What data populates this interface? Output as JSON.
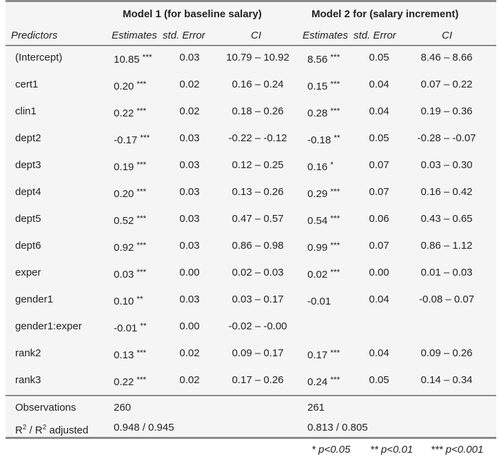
{
  "header": {
    "model1_title": "Model 1 (for baseline salary)",
    "model2_title": "Model 2 for (salary increment)"
  },
  "subheader": {
    "predictors": "Predictors",
    "estimates1": "Estimates",
    "std_error1": "std. Error",
    "ci1": "CI",
    "estimates2": "Estimates",
    "std_error2": "std. Error",
    "ci2": "CI"
  },
  "rows": [
    {
      "name": "(Intercept)",
      "m1_est": "10.85",
      "m1_stars": "***",
      "m1_se": "0.03",
      "m1_ci": "10.79 – 10.92",
      "m2_est": "8.56",
      "m2_stars": "***",
      "m2_se": "0.05",
      "m2_ci": "8.46 – 8.66"
    },
    {
      "name": "cert1",
      "m1_est": "0.20",
      "m1_stars": "***",
      "m1_se": "0.02",
      "m1_ci": "0.16 – 0.24",
      "m2_est": "0.15",
      "m2_stars": "***",
      "m2_se": "0.04",
      "m2_ci": "0.07 – 0.22"
    },
    {
      "name": "clin1",
      "m1_est": "0.22",
      "m1_stars": "***",
      "m1_se": "0.02",
      "m1_ci": "0.18 – 0.26",
      "m2_est": "0.28",
      "m2_stars": "***",
      "m2_se": "0.04",
      "m2_ci": "0.19 – 0.36"
    },
    {
      "name": "dept2",
      "m1_est": "-0.17",
      "m1_stars": "***",
      "m1_se": "0.03",
      "m1_ci": "-0.22 – -0.12",
      "m2_est": "-0.18",
      "m2_stars": "**",
      "m2_se": "0.05",
      "m2_ci": "-0.28 – -0.07"
    },
    {
      "name": "dept3",
      "m1_est": "0.19",
      "m1_stars": "***",
      "m1_se": "0.03",
      "m1_ci": "0.12 – 0.25",
      "m2_est": "0.16",
      "m2_stars": "*",
      "m2_se": "0.07",
      "m2_ci": "0.03 – 0.30"
    },
    {
      "name": "dept4",
      "m1_est": "0.20",
      "m1_stars": "***",
      "m1_se": "0.03",
      "m1_ci": "0.13 – 0.26",
      "m2_est": "0.29",
      "m2_stars": "***",
      "m2_se": "0.07",
      "m2_ci": "0.16 – 0.42"
    },
    {
      "name": "dept5",
      "m1_est": "0.52",
      "m1_stars": "***",
      "m1_se": "0.03",
      "m1_ci": "0.47 – 0.57",
      "m2_est": "0.54",
      "m2_stars": "***",
      "m2_se": "0.06",
      "m2_ci": "0.43 – 0.65"
    },
    {
      "name": "dept6",
      "m1_est": "0.92",
      "m1_stars": "***",
      "m1_se": "0.03",
      "m1_ci": "0.86 – 0.98",
      "m2_est": "0.99",
      "m2_stars": "***",
      "m2_se": "0.07",
      "m2_ci": "0.86 – 1.12"
    },
    {
      "name": "exper",
      "m1_est": "0.03",
      "m1_stars": "***",
      "m1_se": "0.00",
      "m1_ci": "0.02 – 0.03",
      "m2_est": "0.02",
      "m2_stars": "***",
      "m2_se": "0.00",
      "m2_ci": "0.01 – 0.03"
    },
    {
      "name": "gender1",
      "m1_est": "0.10",
      "m1_stars": "**",
      "m1_se": "0.03",
      "m1_ci": "0.03 – 0.17",
      "m2_est": "-0.01",
      "m2_stars": "",
      "m2_se": "0.04",
      "m2_ci": "-0.08 – 0.07"
    },
    {
      "name": "gender1:exper",
      "m1_est": "-0.01",
      "m1_stars": "**",
      "m1_se": "0.00",
      "m1_ci": "-0.02 – -0.00",
      "m2_est": "",
      "m2_stars": "",
      "m2_se": "",
      "m2_ci": ""
    },
    {
      "name": "rank2",
      "m1_est": "0.13",
      "m1_stars": "***",
      "m1_se": "0.02",
      "m1_ci": "0.09 – 0.17",
      "m2_est": "0.17",
      "m2_stars": "***",
      "m2_se": "0.04",
      "m2_ci": "0.09 – 0.26"
    },
    {
      "name": "rank3",
      "m1_est": "0.22",
      "m1_stars": "***",
      "m1_se": "0.02",
      "m1_ci": "0.17 – 0.26",
      "m2_est": "0.24",
      "m2_stars": "***",
      "m2_se": "0.05",
      "m2_ci": "0.14 – 0.34"
    }
  ],
  "footer": {
    "observations_label": "Observations",
    "observations_m1": "260",
    "observations_m2": "261",
    "r2_label_r": "R",
    "r2_label_exp": "2",
    "r2_label_mid": " / R",
    "r2_label_exp2": "2",
    "r2_label_end": " adjusted",
    "r2_m1": "0.948 / 0.945",
    "r2_m2": "0.813 / 0.805"
  },
  "note": {
    "p1": "* p<0.05",
    "p2": "** p<0.01",
    "p3": "*** p<0.001"
  }
}
